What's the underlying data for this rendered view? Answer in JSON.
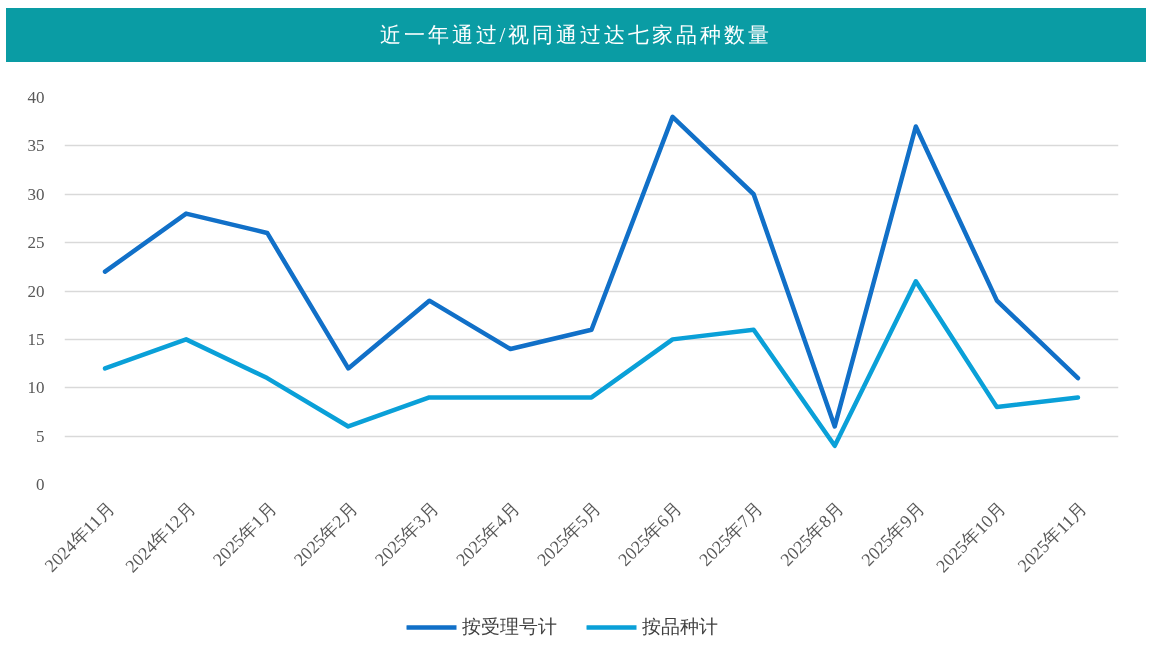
{
  "chart_data": {
    "type": "line",
    "title": "近一年通过/视同通过达七家品种数量",
    "categories": [
      "2024年11月",
      "2024年12月",
      "2025年1月",
      "2025年2月",
      "2025年3月",
      "2025年4月",
      "2025年5月",
      "2025年6月",
      "2025年7月",
      "2025年8月",
      "2025年9月",
      "2025年10月",
      "2025年11月"
    ],
    "series": [
      {
        "name": "按受理号计",
        "color": "#1170c8",
        "values": [
          22,
          28,
          26,
          12,
          19,
          14,
          16,
          38,
          30,
          6,
          37,
          19,
          11
        ]
      },
      {
        "name": "按品种计",
        "color": "#0aa0d8",
        "values": [
          12,
          15,
          11,
          6,
          9,
          9,
          9,
          15,
          16,
          4,
          21,
          8,
          9
        ]
      }
    ],
    "ylim": [
      0,
      40
    ],
    "yticks": [
      0,
      5,
      10,
      15,
      20,
      25,
      30,
      35,
      40
    ],
    "grid": "y",
    "legend": "bottom",
    "line_style": "solid"
  }
}
